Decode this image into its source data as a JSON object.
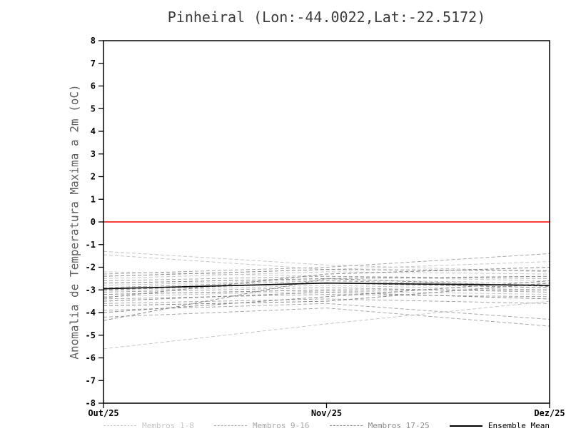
{
  "page": {
    "background": "#ffffff",
    "axis_color": "#000000"
  },
  "chart_data": {
    "type": "line",
    "title": "Pinheiral (Lon:-44.0022,Lat:-22.5172)",
    "ylabel": "Anomalia de Temperatura Maxima a 2m (oC)",
    "xlabel": "",
    "x_tick_labels": [
      "Out/25",
      "Nov/25",
      "Dez/25"
    ],
    "ylim": [
      -8,
      8
    ],
    "ytick_step": 1,
    "grid": false,
    "legend_position": "bottom",
    "zero_line": {
      "y": 0,
      "color": "#fa3c3c"
    },
    "mean": {
      "name": "Ensemble Mean",
      "color": "#000000",
      "values": [
        -2.95,
        -2.7,
        -2.8
      ]
    },
    "groups": [
      {
        "name": "Membros 1-8",
        "color": "#c6c6c6",
        "dash": "5,3",
        "series": [
          [
            -1.3,
            -1.9,
            -2.2
          ],
          [
            -1.45,
            -2.1,
            -1.75
          ],
          [
            -2.2,
            -2.4,
            -2.6
          ],
          [
            -2.5,
            -2.2,
            -2.3
          ],
          [
            -2.8,
            -2.55,
            -2.7
          ],
          [
            -3.05,
            -2.8,
            -3.0
          ],
          [
            -3.3,
            -3.05,
            -3.2
          ],
          [
            -5.6,
            -4.5,
            -3.5
          ]
        ]
      },
      {
        "name": "Membros 9-16",
        "color": "#a8a8a8",
        "dash": "5,3",
        "series": [
          [
            -2.3,
            -2.0,
            -1.4
          ],
          [
            -2.6,
            -2.4,
            -2.5
          ],
          [
            -2.9,
            -2.6,
            -2.8
          ],
          [
            -3.1,
            -2.9,
            -3.1
          ],
          [
            -3.4,
            -3.2,
            -3.3
          ],
          [
            -3.6,
            -3.4,
            -3.6
          ],
          [
            -3.9,
            -3.6,
            -4.3
          ],
          [
            -4.2,
            -3.8,
            -4.6
          ]
        ]
      },
      {
        "name": "Membros 17-25",
        "color": "#8a8a8a",
        "dash": "5,3",
        "series": [
          [
            -2.4,
            -2.1,
            -2.15
          ],
          [
            -2.7,
            -2.5,
            -2.4
          ],
          [
            -3.0,
            -2.7,
            -2.9
          ],
          [
            -3.2,
            -3.0,
            -3.0
          ],
          [
            -3.5,
            -3.1,
            -3.4
          ],
          [
            -3.7,
            -3.5,
            -2.7
          ],
          [
            -4.0,
            -3.3,
            -2.6
          ],
          [
            -4.35,
            -2.5,
            -2.85
          ],
          [
            -3.35,
            -2.3,
            -2.0
          ]
        ]
      }
    ]
  }
}
